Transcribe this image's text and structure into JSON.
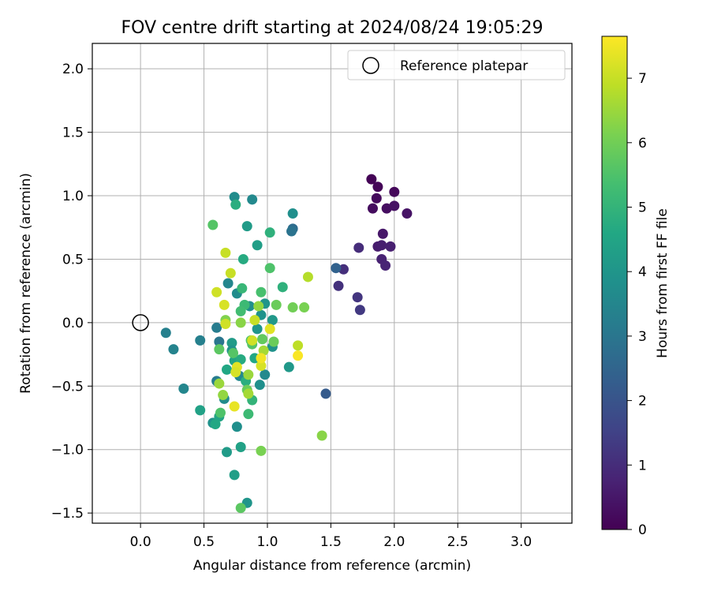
{
  "chart_data": {
    "type": "scatter",
    "title": "FOV centre drift starting at 2024/08/24 19:05:29",
    "xlabel": "Angular distance from reference (arcmin)",
    "ylabel": "Rotation from reference (arcmin)",
    "xlim": [
      -0.38,
      3.4
    ],
    "ylim": [
      -1.58,
      2.2
    ],
    "xticks": [
      0.0,
      0.5,
      1.0,
      1.5,
      2.0,
      2.5,
      3.0
    ],
    "xtick_labels": [
      "0.0",
      "0.5",
      "1.0",
      "1.5",
      "2.0",
      "2.5",
      "3.0"
    ],
    "yticks": [
      -1.5,
      -1.0,
      -0.5,
      0.0,
      0.5,
      1.0,
      1.5,
      2.0
    ],
    "ytick_labels": [
      "−1.5",
      "−1.0",
      "−0.5",
      "0.0",
      "0.5",
      "1.0",
      "1.5",
      "2.0"
    ],
    "grid": true,
    "legend": {
      "placement": "top-right",
      "entries": [
        "Reference platepar"
      ]
    },
    "reference_point": {
      "x": 0.0,
      "y": 0.0,
      "label": "Reference platepar"
    },
    "colorbar": {
      "label": "Hours from first FF file",
      "colormap": "viridis",
      "range": [
        0,
        7.65
      ],
      "ticks": [
        0,
        1,
        2,
        3,
        4,
        5,
        6,
        7
      ],
      "tick_labels": [
        "0",
        "1",
        "2",
        "3",
        "4",
        "5",
        "6",
        "7"
      ]
    },
    "points": [
      {
        "x": 1.82,
        "y": 1.13,
        "c": 0.05
      },
      {
        "x": 1.87,
        "y": 1.07,
        "c": 0.1
      },
      {
        "x": 2.0,
        "y": 1.03,
        "c": 0.15
      },
      {
        "x": 1.86,
        "y": 0.98,
        "c": 0.2
      },
      {
        "x": 1.83,
        "y": 0.9,
        "c": 0.25
      },
      {
        "x": 1.94,
        "y": 0.9,
        "c": 0.3
      },
      {
        "x": 2.0,
        "y": 0.92,
        "c": 0.35
      },
      {
        "x": 2.1,
        "y": 0.86,
        "c": 0.4
      },
      {
        "x": 1.91,
        "y": 0.7,
        "c": 0.5
      },
      {
        "x": 1.87,
        "y": 0.6,
        "c": 0.6
      },
      {
        "x": 1.9,
        "y": 0.61,
        "c": 0.65
      },
      {
        "x": 1.97,
        "y": 0.6,
        "c": 0.7
      },
      {
        "x": 1.9,
        "y": 0.5,
        "c": 0.75
      },
      {
        "x": 1.93,
        "y": 0.45,
        "c": 0.8
      },
      {
        "x": 1.72,
        "y": 0.59,
        "c": 1.0
      },
      {
        "x": 1.6,
        "y": 0.42,
        "c": 1.05
      },
      {
        "x": 1.56,
        "y": 0.29,
        "c": 1.1
      },
      {
        "x": 1.71,
        "y": 0.2,
        "c": 1.2
      },
      {
        "x": 1.73,
        "y": 0.1,
        "c": 1.3
      },
      {
        "x": 1.54,
        "y": 0.43,
        "c": 2.4
      },
      {
        "x": 1.46,
        "y": -0.56,
        "c": 2.2
      },
      {
        "x": 1.2,
        "y": 0.74,
        "c": 2.7
      },
      {
        "x": 1.19,
        "y": 0.72,
        "c": 2.9
      },
      {
        "x": 0.2,
        "y": -0.08,
        "c": 3.3
      },
      {
        "x": 0.26,
        "y": -0.21,
        "c": 3.4
      },
      {
        "x": 0.34,
        "y": -0.52,
        "c": 3.5
      },
      {
        "x": 0.47,
        "y": -0.14,
        "c": 3.3
      },
      {
        "x": 0.6,
        "y": -0.04,
        "c": 3.2
      },
      {
        "x": 0.62,
        "y": -0.15,
        "c": 3.0
      },
      {
        "x": 0.6,
        "y": -0.46,
        "c": 3.2
      },
      {
        "x": 0.88,
        "y": 0.97,
        "c": 3.6
      },
      {
        "x": 0.74,
        "y": 0.99,
        "c": 3.7
      },
      {
        "x": 1.2,
        "y": 0.86,
        "c": 3.8
      },
      {
        "x": 0.84,
        "y": 0.76,
        "c": 4.2
      },
      {
        "x": 0.92,
        "y": 0.61,
        "c": 4.3
      },
      {
        "x": 1.02,
        "y": 0.71,
        "c": 4.9
      },
      {
        "x": 0.69,
        "y": 0.31,
        "c": 3.5
      },
      {
        "x": 0.76,
        "y": 0.23,
        "c": 3.7
      },
      {
        "x": 0.86,
        "y": 0.13,
        "c": 3.8
      },
      {
        "x": 0.95,
        "y": 0.06,
        "c": 3.9
      },
      {
        "x": 0.98,
        "y": 0.15,
        "c": 4.0
      },
      {
        "x": 1.04,
        "y": 0.02,
        "c": 4.1
      },
      {
        "x": 0.92,
        "y": -0.05,
        "c": 4.0
      },
      {
        "x": 0.72,
        "y": -0.16,
        "c": 4.2
      },
      {
        "x": 0.72,
        "y": -0.22,
        "c": 3.9
      },
      {
        "x": 0.78,
        "y": -0.42,
        "c": 3.6
      },
      {
        "x": 0.76,
        "y": -0.82,
        "c": 3.8
      },
      {
        "x": 0.66,
        "y": -0.6,
        "c": 3.7
      },
      {
        "x": 0.57,
        "y": -0.79,
        "c": 3.9
      },
      {
        "x": 0.68,
        "y": -1.02,
        "c": 4.2
      },
      {
        "x": 0.79,
        "y": -0.98,
        "c": 4.4
      },
      {
        "x": 0.74,
        "y": -1.2,
        "c": 4.3
      },
      {
        "x": 0.84,
        "y": -1.42,
        "c": 4.0
      },
      {
        "x": 0.98,
        "y": -0.41,
        "c": 3.6
      },
      {
        "x": 0.94,
        "y": -0.49,
        "c": 3.8
      },
      {
        "x": 1.04,
        "y": -0.19,
        "c": 3.9
      },
      {
        "x": 1.17,
        "y": -0.35,
        "c": 4.1
      },
      {
        "x": 0.47,
        "y": -0.69,
        "c": 4.4
      },
      {
        "x": 0.75,
        "y": 0.93,
        "c": 4.8
      },
      {
        "x": 0.81,
        "y": 0.5,
        "c": 4.7
      },
      {
        "x": 1.12,
        "y": 0.28,
        "c": 4.9
      },
      {
        "x": 0.62,
        "y": -0.74,
        "c": 4.5
      },
      {
        "x": 0.59,
        "y": -0.8,
        "c": 4.6
      },
      {
        "x": 0.68,
        "y": -0.37,
        "c": 4.6
      },
      {
        "x": 0.74,
        "y": -0.3,
        "c": 4.5
      },
      {
        "x": 0.79,
        "y": -0.29,
        "c": 4.7
      },
      {
        "x": 0.9,
        "y": -0.28,
        "c": 4.6
      },
      {
        "x": 0.83,
        "y": -0.46,
        "c": 4.8
      },
      {
        "x": 0.88,
        "y": -0.61,
        "c": 5.0
      },
      {
        "x": 0.85,
        "y": -0.72,
        "c": 5.2
      },
      {
        "x": 0.82,
        "y": 0.14,
        "c": 5.2
      },
      {
        "x": 0.8,
        "y": 0.27,
        "c": 5.1
      },
      {
        "x": 1.02,
        "y": 0.43,
        "c": 5.5
      },
      {
        "x": 0.95,
        "y": 0.24,
        "c": 5.4
      },
      {
        "x": 0.79,
        "y": 0.09,
        "c": 5.3
      },
      {
        "x": 0.87,
        "y": -0.14,
        "c": 5.5
      },
      {
        "x": 0.88,
        "y": -0.17,
        "c": 5.6
      },
      {
        "x": 0.96,
        "y": -0.13,
        "c": 5.8
      },
      {
        "x": 1.05,
        "y": -0.15,
        "c": 5.9
      },
      {
        "x": 1.07,
        "y": 0.14,
        "c": 5.9
      },
      {
        "x": 0.57,
        "y": 0.77,
        "c": 5.6
      },
      {
        "x": 0.62,
        "y": -0.21,
        "c": 5.7
      },
      {
        "x": 0.63,
        "y": -0.71,
        "c": 5.5
      },
      {
        "x": 0.73,
        "y": -0.24,
        "c": 5.6
      },
      {
        "x": 0.84,
        "y": -0.53,
        "c": 5.9
      },
      {
        "x": 0.79,
        "y": -1.46,
        "c": 5.7
      },
      {
        "x": 1.2,
        "y": 0.12,
        "c": 6.0
      },
      {
        "x": 1.29,
        "y": 0.12,
        "c": 6.1
      },
      {
        "x": 0.95,
        "y": -1.01,
        "c": 6.1
      },
      {
        "x": 1.43,
        "y": -0.89,
        "c": 6.3
      },
      {
        "x": 0.67,
        "y": 0.02,
        "c": 6.2
      },
      {
        "x": 0.79,
        "y": 0.0,
        "c": 6.3
      },
      {
        "x": 0.93,
        "y": 0.13,
        "c": 6.4
      },
      {
        "x": 0.97,
        "y": -0.22,
        "c": 6.6
      },
      {
        "x": 0.85,
        "y": -0.41,
        "c": 6.5
      },
      {
        "x": 0.85,
        "y": -0.56,
        "c": 6.6
      },
      {
        "x": 0.65,
        "y": -0.57,
        "c": 6.4
      },
      {
        "x": 0.62,
        "y": -0.48,
        "c": 6.5
      },
      {
        "x": 1.32,
        "y": 0.36,
        "c": 6.8
      },
      {
        "x": 1.24,
        "y": -0.18,
        "c": 6.9
      },
      {
        "x": 0.67,
        "y": 0.55,
        "c": 7.0
      },
      {
        "x": 0.71,
        "y": 0.39,
        "c": 7.0
      },
      {
        "x": 0.6,
        "y": 0.24,
        "c": 7.1
      },
      {
        "x": 0.66,
        "y": 0.14,
        "c": 7.2
      },
      {
        "x": 0.67,
        "y": -0.01,
        "c": 7.1
      },
      {
        "x": 0.9,
        "y": 0.02,
        "c": 7.0
      },
      {
        "x": 0.76,
        "y": -0.35,
        "c": 7.3
      },
      {
        "x": 0.75,
        "y": -0.39,
        "c": 7.2
      },
      {
        "x": 0.74,
        "y": -0.66,
        "c": 7.4
      },
      {
        "x": 0.95,
        "y": -0.34,
        "c": 7.2
      },
      {
        "x": 0.95,
        "y": -0.28,
        "c": 7.5
      },
      {
        "x": 1.24,
        "y": -0.26,
        "c": 7.6
      },
      {
        "x": 0.88,
        "y": -0.14,
        "c": 7.1
      },
      {
        "x": 1.02,
        "y": -0.05,
        "c": 7.3
      }
    ]
  }
}
